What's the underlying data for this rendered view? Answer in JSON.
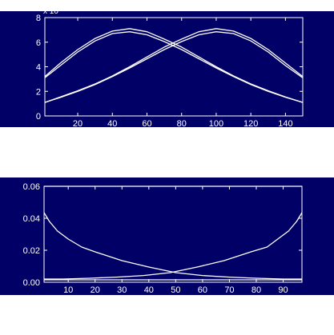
{
  "colors": {
    "background": "#000066",
    "foreground": "#ffffff"
  },
  "chart_data": [
    {
      "type": "line",
      "exponent_label": "x 10",
      "xlim": [
        1,
        150
      ],
      "ylim": [
        0,
        8
      ],
      "xticks": [
        20,
        40,
        60,
        80,
        100,
        120,
        140
      ],
      "yticks": [
        0,
        2,
        4,
        6,
        8
      ],
      "grid": false,
      "series": [
        {
          "x": [
            1,
            10,
            20,
            30,
            40,
            50,
            60,
            70,
            80,
            90,
            100,
            110,
            120,
            130,
            140,
            150
          ],
          "values": [
            3.2,
            4.3,
            5.4,
            6.3,
            6.9,
            7.1,
            6.85,
            6.25,
            5.6,
            4.8,
            4.0,
            3.25,
            2.6,
            2.05,
            1.55,
            1.1
          ]
        },
        {
          "x": [
            1,
            10,
            20,
            30,
            40,
            50,
            60,
            70,
            80,
            90,
            100,
            110,
            120,
            130,
            140,
            150
          ],
          "values": [
            3.1,
            4.1,
            5.2,
            6.1,
            6.7,
            6.85,
            6.6,
            6.05,
            5.4,
            4.65,
            3.9,
            3.2,
            2.55,
            2.0,
            1.52,
            1.1
          ]
        },
        {
          "x": [
            1,
            10,
            20,
            30,
            40,
            50,
            60,
            70,
            80,
            90,
            100,
            110,
            120,
            130,
            140,
            150
          ],
          "values": [
            1.1,
            1.5,
            2.0,
            2.55,
            3.2,
            3.9,
            4.65,
            5.4,
            6.05,
            6.6,
            6.85,
            6.7,
            6.1,
            5.2,
            4.1,
            3.1
          ]
        },
        {
          "x": [
            1,
            10,
            20,
            30,
            40,
            50,
            60,
            70,
            80,
            90,
            100,
            110,
            120,
            130,
            140,
            150
          ],
          "values": [
            1.1,
            1.55,
            2.05,
            2.6,
            3.25,
            4.0,
            4.8,
            5.6,
            6.25,
            6.85,
            7.1,
            6.9,
            6.3,
            5.4,
            4.3,
            3.2
          ]
        }
      ]
    },
    {
      "type": "line",
      "xlim": [
        1,
        97
      ],
      "ylim": [
        0,
        0.06
      ],
      "xticks": [
        10,
        20,
        30,
        40,
        50,
        60,
        70,
        80,
        90
      ],
      "yticks": [
        0,
        0.02,
        0.04,
        0.06
      ],
      "grid": false,
      "series": [
        {
          "x": [
            1,
            3,
            6,
            10,
            15,
            20,
            30,
            40,
            50,
            60,
            70,
            80,
            90,
            97
          ],
          "values": [
            0.0435,
            0.038,
            0.032,
            0.027,
            0.022,
            0.019,
            0.0135,
            0.0095,
            0.006,
            0.0042,
            0.0032,
            0.0025,
            0.002,
            0.002
          ]
        },
        {
          "x": [
            1,
            8,
            18,
            28,
            38,
            48,
            58,
            68,
            78,
            84,
            88,
            92,
            95,
            97
          ],
          "values": [
            0.002,
            0.002,
            0.0025,
            0.0032,
            0.0042,
            0.006,
            0.0095,
            0.0135,
            0.019,
            0.022,
            0.027,
            0.032,
            0.038,
            0.0435
          ]
        },
        {
          "x": [
            1,
            97
          ],
          "values": [
            0.0015,
            0.0015
          ]
        },
        {
          "x": [
            1,
            97
          ],
          "values": [
            0.06,
            0.06
          ]
        }
      ]
    }
  ]
}
